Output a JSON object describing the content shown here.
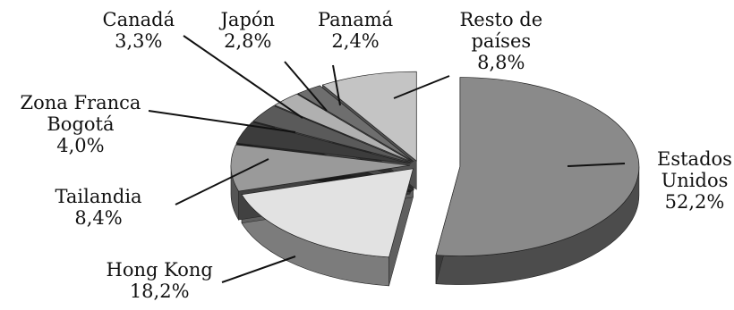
{
  "chart_data": {
    "type": "pie",
    "title": "",
    "categories": [
      "Estados Unidos",
      "Hong Kong",
      "Tailandia",
      "Zona Franca Bogotá",
      "Canadá",
      "Japón",
      "Panamá",
      "Resto de países"
    ],
    "values": [
      52.2,
      18.2,
      8.4,
      4.0,
      3.3,
      2.8,
      2.4,
      8.8
    ],
    "value_labels": [
      "52,2%",
      "18,2%",
      "8,4%",
      "4,0%",
      "3,3%",
      "2,8%",
      "2,4%",
      "8,8%"
    ],
    "label_lines": [
      [
        "Estados",
        "Unidos",
        "52,2%"
      ],
      [
        "Hong Kong",
        "18,2%"
      ],
      [
        "Tailandia",
        "8,4%"
      ],
      [
        "Zona Franca",
        "Bogotá",
        "4,0%"
      ],
      [
        "Canadá",
        "3,3%"
      ],
      [
        "Japón",
        "2,8%"
      ],
      [
        "Panamá",
        "2,4%"
      ],
      [
        "Resto de",
        "países",
        "8,8%"
      ]
    ],
    "style": "3d-exploded",
    "legend": "none",
    "colors": [
      "#8a8a8a",
      "#e2e2e2",
      "#9a9a9a",
      "#3c3c3c",
      "#5a5a5a",
      "#b0b0b0",
      "#6e6e6e",
      "#c4c4c4"
    ]
  }
}
